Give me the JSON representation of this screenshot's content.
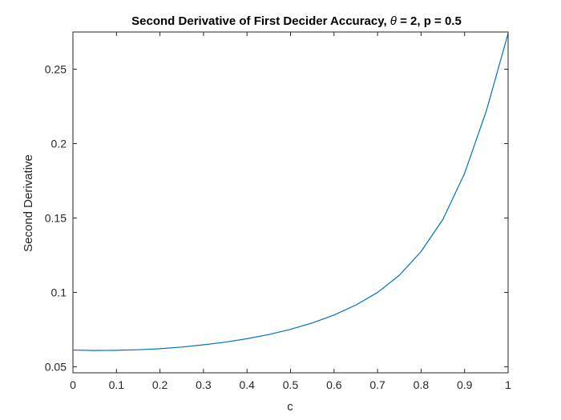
{
  "chart_data": {
    "type": "line",
    "title_parts": {
      "prefix": "Second Derivative of First Decider Accuracy, ",
      "theta": "θ",
      "suffix": " = 2, p = 0.5"
    },
    "xlabel": "c",
    "ylabel": "Second Derivative",
    "xlim": [
      0,
      1
    ],
    "ylim": [
      0.046,
      0.275
    ],
    "xticks": [
      0,
      0.1,
      0.2,
      0.3,
      0.4,
      0.5,
      0.6,
      0.7,
      0.8,
      0.9,
      1
    ],
    "xtick_labels": [
      "0",
      "0.1",
      "0.2",
      "0.3",
      "0.4",
      "0.5",
      "0.6",
      "0.7",
      "0.8",
      "0.9",
      "1"
    ],
    "yticks": [
      0.05,
      0.1,
      0.15,
      0.2,
      0.25
    ],
    "ytick_labels": [
      "0.05",
      "0.1",
      "0.15",
      "0.2",
      "0.25"
    ],
    "grid": false,
    "series": [
      {
        "color": "#0072BD",
        "x": [
          0,
          0.05,
          0.1,
          0.15,
          0.2,
          0.25,
          0.3,
          0.35,
          0.4,
          0.45,
          0.5,
          0.55,
          0.6,
          0.65,
          0.7,
          0.75,
          0.8,
          0.85,
          0.9,
          0.95,
          1
        ],
        "y": [
          0.0613,
          0.061,
          0.0611,
          0.0615,
          0.0622,
          0.0633,
          0.0648,
          0.0666,
          0.0689,
          0.0717,
          0.0752,
          0.0795,
          0.0848,
          0.0915,
          0.1,
          0.1115,
          0.1275,
          0.149,
          0.18,
          0.222,
          0.274
        ]
      }
    ]
  }
}
